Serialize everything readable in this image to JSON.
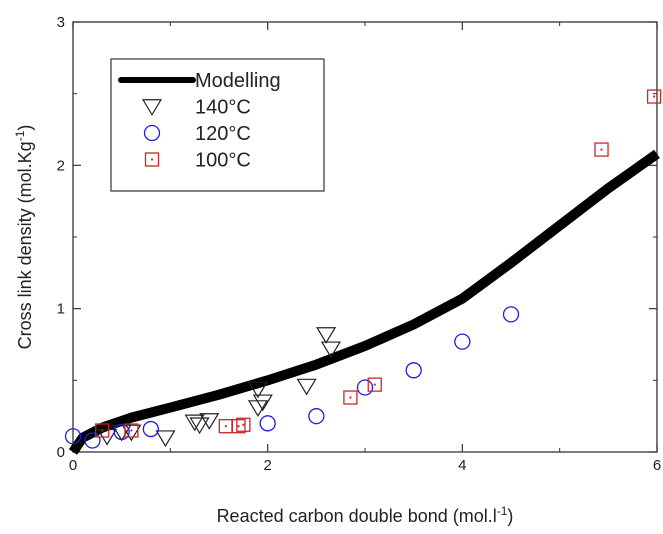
{
  "chart_data": {
    "type": "scatter",
    "title": "",
    "xlabel": {
      "main": "Reacted carbon   double bond (mol.l",
      "sup": "-1",
      "tail": ")"
    },
    "ylabel": {
      "main": "Cross link density (mol.Kg",
      "sup": "-1",
      "tail": ")"
    },
    "xlim": [
      0,
      6
    ],
    "ylim": [
      0,
      3
    ],
    "xticks": [
      {
        "value": 0,
        "label": "0"
      },
      {
        "value": 2,
        "label": "2"
      },
      {
        "value": 4,
        "label": "4"
      },
      {
        "value": 6,
        "label": "6"
      }
    ],
    "yticks": [
      {
        "value": 0,
        "label": "0"
      },
      {
        "value": 1,
        "label": "1"
      },
      {
        "value": 2,
        "label": "2"
      },
      {
        "value": 3,
        "label": "3"
      }
    ],
    "grid": false,
    "legend_position": "top-left",
    "series": [
      {
        "name": "Modelling",
        "kind": "line",
        "color": "#000000",
        "x": [
          0,
          0.1,
          0.3,
          0.6,
          1.0,
          1.5,
          2.0,
          2.5,
          3.0,
          3.5,
          4.0,
          4.5,
          5.0,
          5.5,
          6.0
        ],
        "y": [
          0,
          0.1,
          0.17,
          0.24,
          0.31,
          0.4,
          0.5,
          0.61,
          0.74,
          0.89,
          1.07,
          1.32,
          1.58,
          1.84,
          2.08
        ]
      },
      {
        "name": "140°C",
        "kind": "marker",
        "marker": "triangle-down",
        "color": "#222222",
        "x": [
          0.35,
          0.5,
          0.6,
          0.95,
          1.25,
          1.3,
          1.4,
          1.9,
          1.9,
          1.95,
          2.4,
          2.6,
          2.65
        ],
        "y": [
          0.11,
          0.14,
          0.14,
          0.1,
          0.21,
          0.19,
          0.22,
          0.44,
          0.31,
          0.35,
          0.46,
          0.82,
          0.72
        ]
      },
      {
        "name": "120°C",
        "kind": "marker",
        "marker": "circle",
        "color": "#1f1fd6",
        "x": [
          0.0,
          0.2,
          0.5,
          0.8,
          2.0,
          2.5,
          3.0,
          3.5,
          4.0,
          4.5
        ],
        "y": [
          0.11,
          0.08,
          0.14,
          0.16,
          0.2,
          0.25,
          0.45,
          0.57,
          0.77,
          0.96
        ]
      },
      {
        "name": "100°C",
        "kind": "marker",
        "marker": "square-dot",
        "color": "#c62828",
        "x": [
          0.3,
          0.6,
          1.57,
          1.7,
          1.75,
          2.85,
          3.1,
          5.43,
          5.97
        ],
        "y": [
          0.15,
          0.15,
          0.18,
          0.18,
          0.19,
          0.38,
          0.47,
          2.11,
          2.48
        ]
      }
    ]
  }
}
